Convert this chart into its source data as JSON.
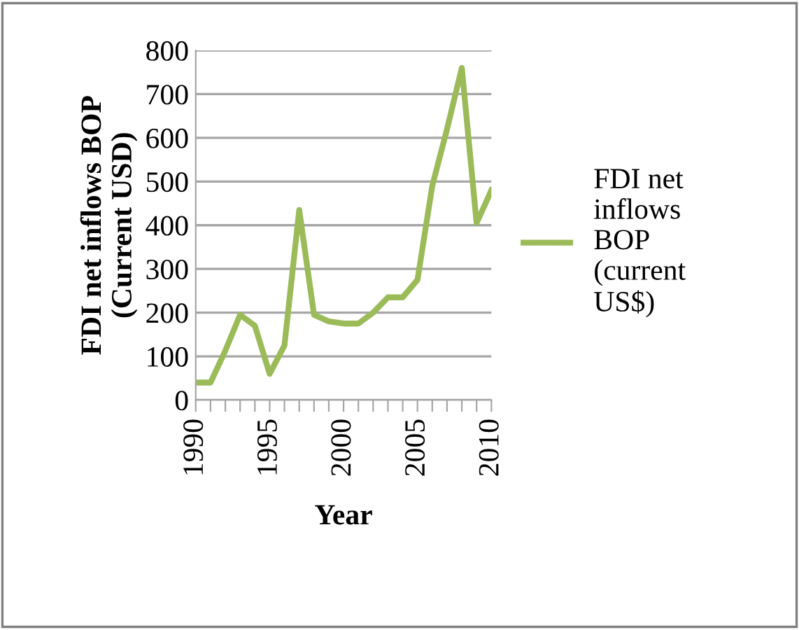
{
  "chart_data": {
    "type": "line",
    "xlabel": "Year",
    "ylabel": "FDI net inflows BOP\n(Current USD)",
    "categories": [
      "1990",
      null,
      null,
      null,
      null,
      "1995",
      null,
      null,
      null,
      null,
      "2000",
      null,
      null,
      null,
      null,
      "2005",
      null,
      null,
      null,
      null,
      "2010"
    ],
    "series": [
      {
        "name": "FDI net\ninflows\nBOP\n(current\nUS$)",
        "color": "#9bbb59",
        "values": [
          40,
          40,
          113,
          195,
          170,
          60,
          125,
          435,
          195,
          180,
          175,
          175,
          200,
          235,
          235,
          275,
          490,
          620,
          760,
          405,
          480
        ]
      }
    ],
    "ylim": [
      0,
      800
    ],
    "yticks": [
      0,
      100,
      200,
      300,
      400,
      500,
      600,
      700,
      800
    ],
    "grid": "y",
    "legend": "right",
    "marker": "none",
    "line_style": "solid"
  }
}
